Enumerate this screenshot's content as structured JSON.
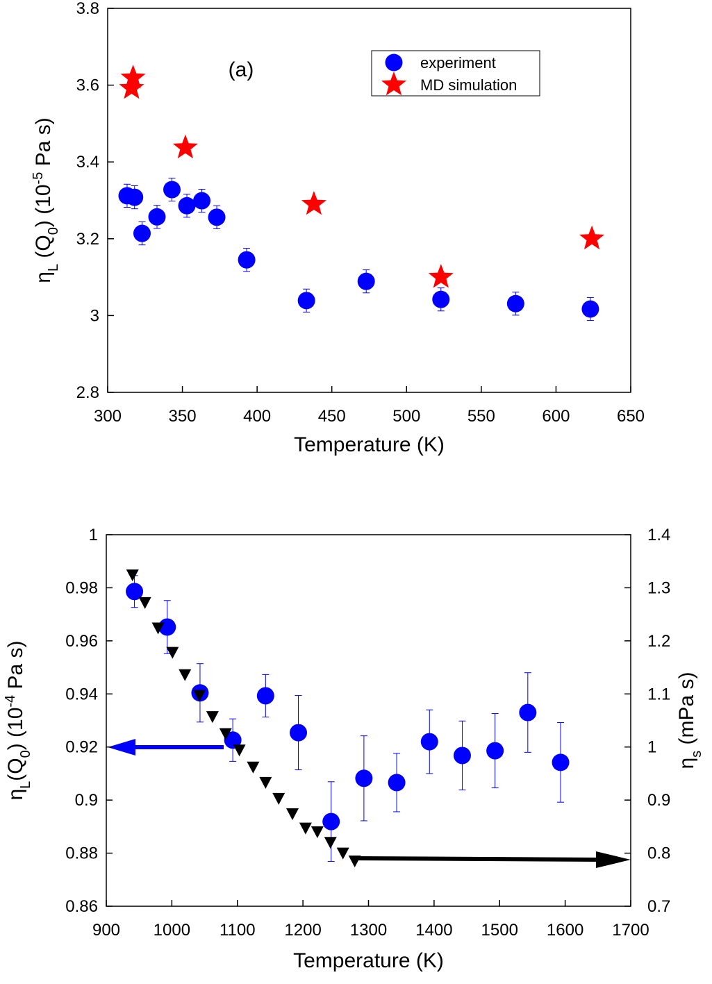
{
  "chart_data": [
    {
      "type": "scatter",
      "x_label": "Temperature (K)",
      "y_label": [
        {
          "text": "η"
        },
        {
          "text": "L",
          "sub": true
        },
        {
          "text": " (Q"
        },
        {
          "text": "0",
          "sub": true
        },
        {
          "text": ")  (10"
        },
        {
          "text": "-5",
          "sup": true
        },
        {
          "text": " Pa s)"
        }
      ],
      "annotations": [
        "(a)"
      ],
      "xlim": [
        300,
        650
      ],
      "xticks": [
        300,
        350,
        400,
        450,
        500,
        550,
        600,
        650
      ],
      "ylim": [
        2.8,
        3.8
      ],
      "yticks": [
        2.8,
        3,
        3.2,
        3.4,
        3.6,
        3.8
      ],
      "legend": true,
      "series": [
        {
          "name": "experiment",
          "color": "#0000ff",
          "marker": "circle",
          "x": [
            313,
            318,
            323,
            333,
            343,
            353,
            363,
            373,
            393,
            433,
            473,
            523,
            573,
            623
          ],
          "values": [
            3.312,
            3.308,
            3.214,
            3.257,
            3.328,
            3.286,
            3.299,
            3.256,
            3.145,
            3.039,
            3.089,
            3.042,
            3.031,
            3.017
          ],
          "errors": [
            0.03,
            0.03,
            0.03,
            0.03,
            0.03,
            0.03,
            0.03,
            0.03,
            0.03,
            0.03,
            0.03,
            0.03,
            0.03,
            0.03
          ]
        },
        {
          "name": "MD simulation",
          "color": "#ff0000",
          "marker": "star",
          "x": [
            317,
            316,
            352,
            438,
            523,
            624
          ],
          "values": [
            3.619,
            3.592,
            3.437,
            3.29,
            3.1,
            3.2
          ]
        }
      ]
    },
    {
      "type": "scatter",
      "x_label": "Temperature (K)",
      "y_label": [
        {
          "text": "η"
        },
        {
          "text": "L",
          "sub": true
        },
        {
          "text": "(Q"
        },
        {
          "text": "0",
          "sub": true
        },
        {
          "text": ") (10"
        },
        {
          "text": "-4",
          "sup": true
        },
        {
          "text": " Pa s)"
        }
      ],
      "y2_label": [
        {
          "text": "η"
        },
        {
          "text": "s",
          "sub": true
        },
        {
          "text": " (mPa s)"
        }
      ],
      "xlim": [
        900,
        1700
      ],
      "xticks": [
        900,
        1000,
        1100,
        1200,
        1300,
        1400,
        1500,
        1600,
        1700
      ],
      "ylim": [
        0.86,
        1
      ],
      "yticks": [
        0.86,
        0.88,
        0.9,
        0.92,
        0.94,
        0.96,
        0.98,
        1
      ],
      "y2lim": [
        0.7,
        1.4
      ],
      "y2ticks": [
        0.7,
        0.8,
        0.9,
        1,
        1.1,
        1.2,
        1.3,
        1.4
      ],
      "series": [
        {
          "color": "#0000ff",
          "marker": "circle",
          "x": [
            943,
            993,
            1043,
            1093,
            1143,
            1193,
            1243,
            1293,
            1343,
            1393,
            1443,
            1493,
            1543,
            1593
          ],
          "values": [
            0.9786,
            0.9652,
            0.9404,
            0.9226,
            0.9393,
            0.9254,
            0.8919,
            0.9082,
            0.9066,
            0.922,
            0.9168,
            0.9186,
            0.933,
            0.9142
          ],
          "errors": [
            0.006,
            0.01,
            0.011,
            0.008,
            0.008,
            0.014,
            0.015,
            0.016,
            0.011,
            0.012,
            0.013,
            0.014,
            0.015,
            0.015
          ]
        },
        {
          "color": "#000000",
          "marker": "triangle-down",
          "axis": "y2",
          "x": [
            940,
            959,
            979,
            1001,
            1020,
            1042,
            1062,
            1082,
            1103,
            1124,
            1143,
            1163,
            1184,
            1204,
            1222,
            1242,
            1261,
            1279
          ],
          "values": [
            1.324,
            1.272,
            1.224,
            1.178,
            1.136,
            1.097,
            1.057,
            1.025,
            0.994,
            0.962,
            0.933,
            0.903,
            0.874,
            0.847,
            0.84,
            0.82,
            0.8,
            0.785
          ]
        }
      ]
    }
  ]
}
